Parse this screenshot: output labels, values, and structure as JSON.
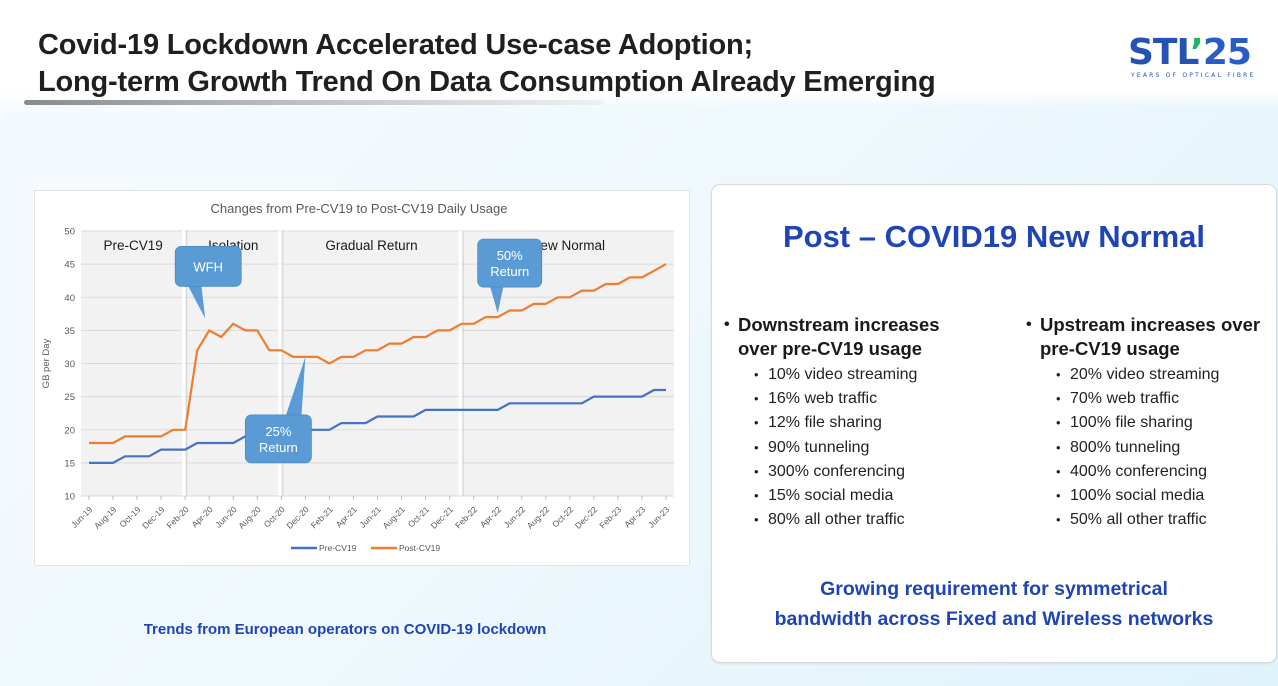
{
  "header": {
    "title_line1": "Covid-19 Lockdown Accelerated Use-case Adoption;",
    "title_line2": "Long-term Growth Trend On Data Consumption Already Emerging"
  },
  "logo": {
    "text_main": "STL",
    "text_tick": "’",
    "text_number": "25",
    "subtitle": "YEARS OF OPTICAL FIBRE",
    "colors": {
      "primary": "#2453b3",
      "accent": "#20b26b"
    }
  },
  "chart_data": {
    "type": "line",
    "title": "Changes from Pre-CV19 to Post-CV19 Daily Usage",
    "xlabel": "",
    "ylabel": "GB per Day",
    "ylim": [
      10,
      50
    ],
    "yticks": [
      10,
      15,
      20,
      25,
      30,
      35,
      40,
      45,
      50
    ],
    "grid": true,
    "legend_position": "bottom",
    "x": [
      "Jun-19",
      "Jul-19",
      "Aug-19",
      "Sep-19",
      "Oct-19",
      "Nov-19",
      "Dec-19",
      "Jan-20",
      "Feb-20",
      "Mar-20",
      "Apr-20",
      "May-20",
      "Jun-20",
      "Jul-20",
      "Aug-20",
      "Sep-20",
      "Oct-20",
      "Nov-20",
      "Dec-20",
      "Jan-21",
      "Feb-21",
      "Mar-21",
      "Apr-21",
      "May-21",
      "Jun-21",
      "Jul-21",
      "Aug-21",
      "Sep-21",
      "Oct-21",
      "Nov-21",
      "Dec-21",
      "Jan-22",
      "Feb-22",
      "Mar-22",
      "Apr-22",
      "May-22",
      "Jun-22",
      "Jul-22",
      "Aug-22",
      "Sep-22",
      "Oct-22",
      "Nov-22",
      "Dec-22",
      "Jan-23",
      "Feb-23",
      "Mar-23",
      "Apr-23",
      "May-23",
      "Jun-23"
    ],
    "xtick_labels": [
      "Jun-19",
      "Aug-19",
      "Oct-19",
      "Dec-19",
      "Feb-20",
      "Apr-20",
      "Jun-20",
      "Aug-20",
      "Oct-20",
      "Dec-20",
      "Feb-21",
      "Apr-21",
      "Jun-21",
      "Aug-21",
      "Oct-21",
      "Dec-21",
      "Feb-22",
      "Apr-22",
      "Jun-22",
      "Aug-22",
      "Oct-22",
      "Dec-22",
      "Feb-23",
      "Apr-23",
      "Jun-23"
    ],
    "series": [
      {
        "name": "Pre-CV19",
        "color": "#4472c4",
        "values": [
          15,
          15,
          15,
          16,
          16,
          16,
          17,
          17,
          17,
          18,
          18,
          18,
          18,
          19,
          19,
          19,
          19,
          20,
          20,
          20,
          20,
          21,
          21,
          21,
          22,
          22,
          22,
          22,
          23,
          23,
          23,
          23,
          23,
          23,
          23,
          24,
          24,
          24,
          24,
          24,
          24,
          24,
          25,
          25,
          25,
          25,
          25,
          26,
          26
        ]
      },
      {
        "name": "Post-CV19",
        "color": "#ed7d31",
        "values": [
          18,
          18,
          18,
          19,
          19,
          19,
          19,
          20,
          20,
          32,
          35,
          34,
          36,
          35,
          35,
          32,
          32,
          31,
          31,
          31,
          30,
          31,
          31,
          32,
          32,
          33,
          33,
          34,
          34,
          35,
          35,
          36,
          36,
          37,
          37,
          38,
          38,
          39,
          39,
          40,
          40,
          41,
          41,
          42,
          42,
          43,
          43,
          44,
          45
        ]
      }
    ],
    "phases": [
      {
        "label": "Pre-CV19",
        "start": "Jun-19",
        "end": "Feb-20"
      },
      {
        "label": "Isolation",
        "start": "Feb-20",
        "end": "Oct-20"
      },
      {
        "label": "Gradual Return",
        "start": "Oct-20",
        "end": "Jan-22"
      },
      {
        "label": "New Normal",
        "start": "Jan-22",
        "end": "Jun-23"
      }
    ],
    "annotations": [
      {
        "text": [
          "WFH"
        ],
        "target_x": "Apr-20",
        "target_series": "Post-CV19"
      },
      {
        "text": [
          "25%",
          "Return"
        ],
        "target_x": "Dec-20",
        "target_series": "Post-CV19"
      },
      {
        "text": [
          "50%",
          "Return"
        ],
        "target_x": "Apr-22",
        "target_series": "Post-CV19"
      }
    ],
    "annotation_color": "#5b9bd5"
  },
  "caption": "Trends from European operators on COVID-19 lockdown",
  "panel": {
    "title": "Post – COVID19 New Normal",
    "downstream": {
      "heading_line1": "Downstream increases",
      "heading_line2": "over pre-CV19 usage",
      "items": [
        "10% video streaming",
        "16% web traffic",
        "12% file sharing",
        "90% tunneling",
        "300% conferencing",
        "15% social media",
        "80% all other traffic"
      ]
    },
    "upstream": {
      "heading_line1": "Upstream increases over",
      "heading_line2": "pre-CV19 usage",
      "items": [
        "20% video streaming",
        "70% web traffic",
        "100% file sharing",
        "800% tunneling",
        "400% conferencing",
        "100% social media",
        "50% all other traffic"
      ]
    },
    "footer_line1": "Growing requirement for symmetrical",
    "footer_line2": "bandwidth across Fixed and Wireless networks"
  }
}
